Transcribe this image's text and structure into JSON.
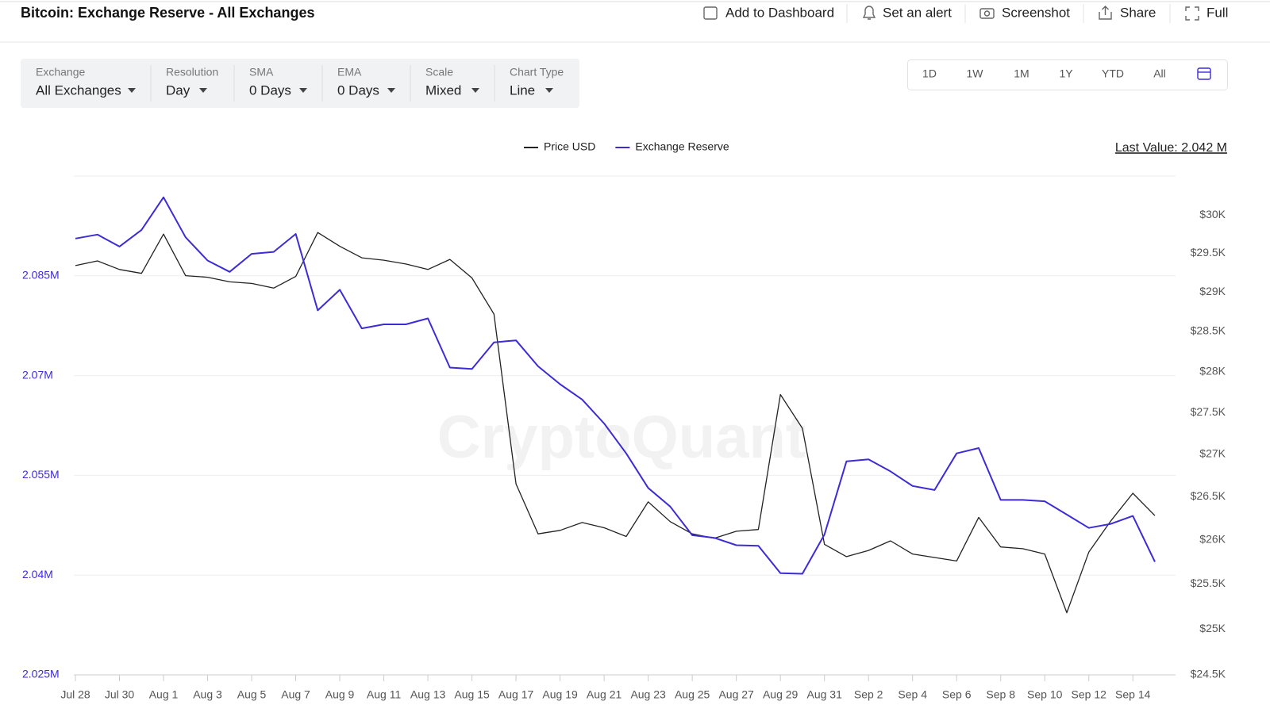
{
  "header": {
    "title": "Bitcoin: Exchange Reserve - All Exchanges",
    "actions": [
      "Add to Dashboard",
      "Set an alert",
      "Screenshot",
      "Share",
      "Full"
    ]
  },
  "filters": [
    {
      "label": "Exchange",
      "value": "All Exchanges"
    },
    {
      "label": "Resolution",
      "value": "Day"
    },
    {
      "label": "SMA",
      "value": "0 Days"
    },
    {
      "label": "EMA",
      "value": "0 Days"
    },
    {
      "label": "Scale",
      "value": "Mixed"
    },
    {
      "label": "Chart Type",
      "value": "Line"
    }
  ],
  "ranges": [
    "1D",
    "1W",
    "1M",
    "1Y",
    "YTD",
    "All"
  ],
  "last_value": "Last Value: 2.042 M",
  "watermark": "CryptoQuant",
  "chart_data": {
    "type": "line",
    "legend": "top",
    "categories": [
      "Jul 28",
      null,
      "Jul 30",
      null,
      "Aug 1",
      null,
      "Aug 3",
      null,
      "Aug 5",
      null,
      "Aug 7",
      null,
      "Aug 9",
      null,
      "Aug 11",
      null,
      "Aug 13",
      null,
      "Aug 15",
      null,
      "Aug 17",
      null,
      "Aug 19",
      null,
      "Aug 21",
      null,
      "Aug 23",
      null,
      "Aug 25",
      null,
      "Aug 27",
      null,
      "Aug 29",
      null,
      "Aug 31",
      null,
      "Sep 2",
      null,
      "Sep 4",
      null,
      "Sep 6",
      null,
      "Sep 8",
      null,
      "Sep 10",
      null,
      "Sep 12",
      null,
      "Sep 14",
      null
    ],
    "series": [
      {
        "name": "Price USD",
        "color": "#222222",
        "axis": "y2",
        "values": [
          29340,
          29400,
          29290,
          29240,
          29750,
          29210,
          29190,
          29130,
          29110,
          29050,
          29200,
          29770,
          29590,
          29440,
          29410,
          29360,
          29290,
          29420,
          29180,
          28720,
          26650,
          26070,
          26110,
          26200,
          26140,
          26040,
          26440,
          26210,
          26070,
          26020,
          26100,
          26120,
          27720,
          27310,
          25950,
          25810,
          25880,
          25990,
          25840,
          25800,
          25760,
          26260,
          25920,
          25900,
          25840,
          25180,
          25860,
          26220,
          26540,
          26280
        ]
      },
      {
        "name": "Exchange Reserve",
        "color": "#3d2bd6",
        "values": [
          2.0906,
          2.0912,
          2.0894,
          2.0919,
          2.0968,
          2.0908,
          2.0873,
          2.0856,
          2.0883,
          2.0886,
          2.0913,
          2.0798,
          2.0829,
          2.0771,
          2.0777,
          2.0777,
          2.0786,
          2.0712,
          2.071,
          2.075,
          2.0753,
          2.0714,
          2.0687,
          2.0664,
          2.0628,
          2.0583,
          2.0531,
          2.0503,
          2.046,
          2.0456,
          2.0445,
          2.0444,
          2.0403,
          2.0402,
          2.0461,
          2.0571,
          2.0574,
          2.0556,
          2.0534,
          2.0528,
          2.0583,
          2.0591,
          2.0513,
          2.0513,
          2.0511,
          2.0491,
          2.0471,
          2.0477,
          2.0489,
          2.042
        ]
      }
    ],
    "ylim": [
      2.025,
      2.1
    ],
    "yticks": [
      {
        "value": 2.025,
        "label": "2.025M"
      },
      {
        "value": 2.04,
        "label": "2.04M"
      },
      {
        "value": 2.055,
        "label": "2.055M"
      },
      {
        "value": 2.07,
        "label": "2.07M"
      },
      {
        "value": 2.085,
        "label": "2.085M"
      }
    ],
    "y2lim": [
      24500,
      30520
    ],
    "y2scale": "log",
    "y2ticks": [
      {
        "value": 24500,
        "label": "$24.5K"
      },
      {
        "value": 25000,
        "label": "$25K"
      },
      {
        "value": 25500,
        "label": "$25.5K"
      },
      {
        "value": 26000,
        "label": "$26K"
      },
      {
        "value": 26500,
        "label": "$26.5K"
      },
      {
        "value": 27000,
        "label": "$27K"
      },
      {
        "value": 27500,
        "label": "$27.5K"
      },
      {
        "value": 28000,
        "label": "$28K"
      },
      {
        "value": 28500,
        "label": "$28.5K"
      },
      {
        "value": 29000,
        "label": "$29K"
      },
      {
        "value": 29500,
        "label": "$29.5K"
      },
      {
        "value": 30000,
        "label": "$30K"
      }
    ],
    "grid": true
  }
}
